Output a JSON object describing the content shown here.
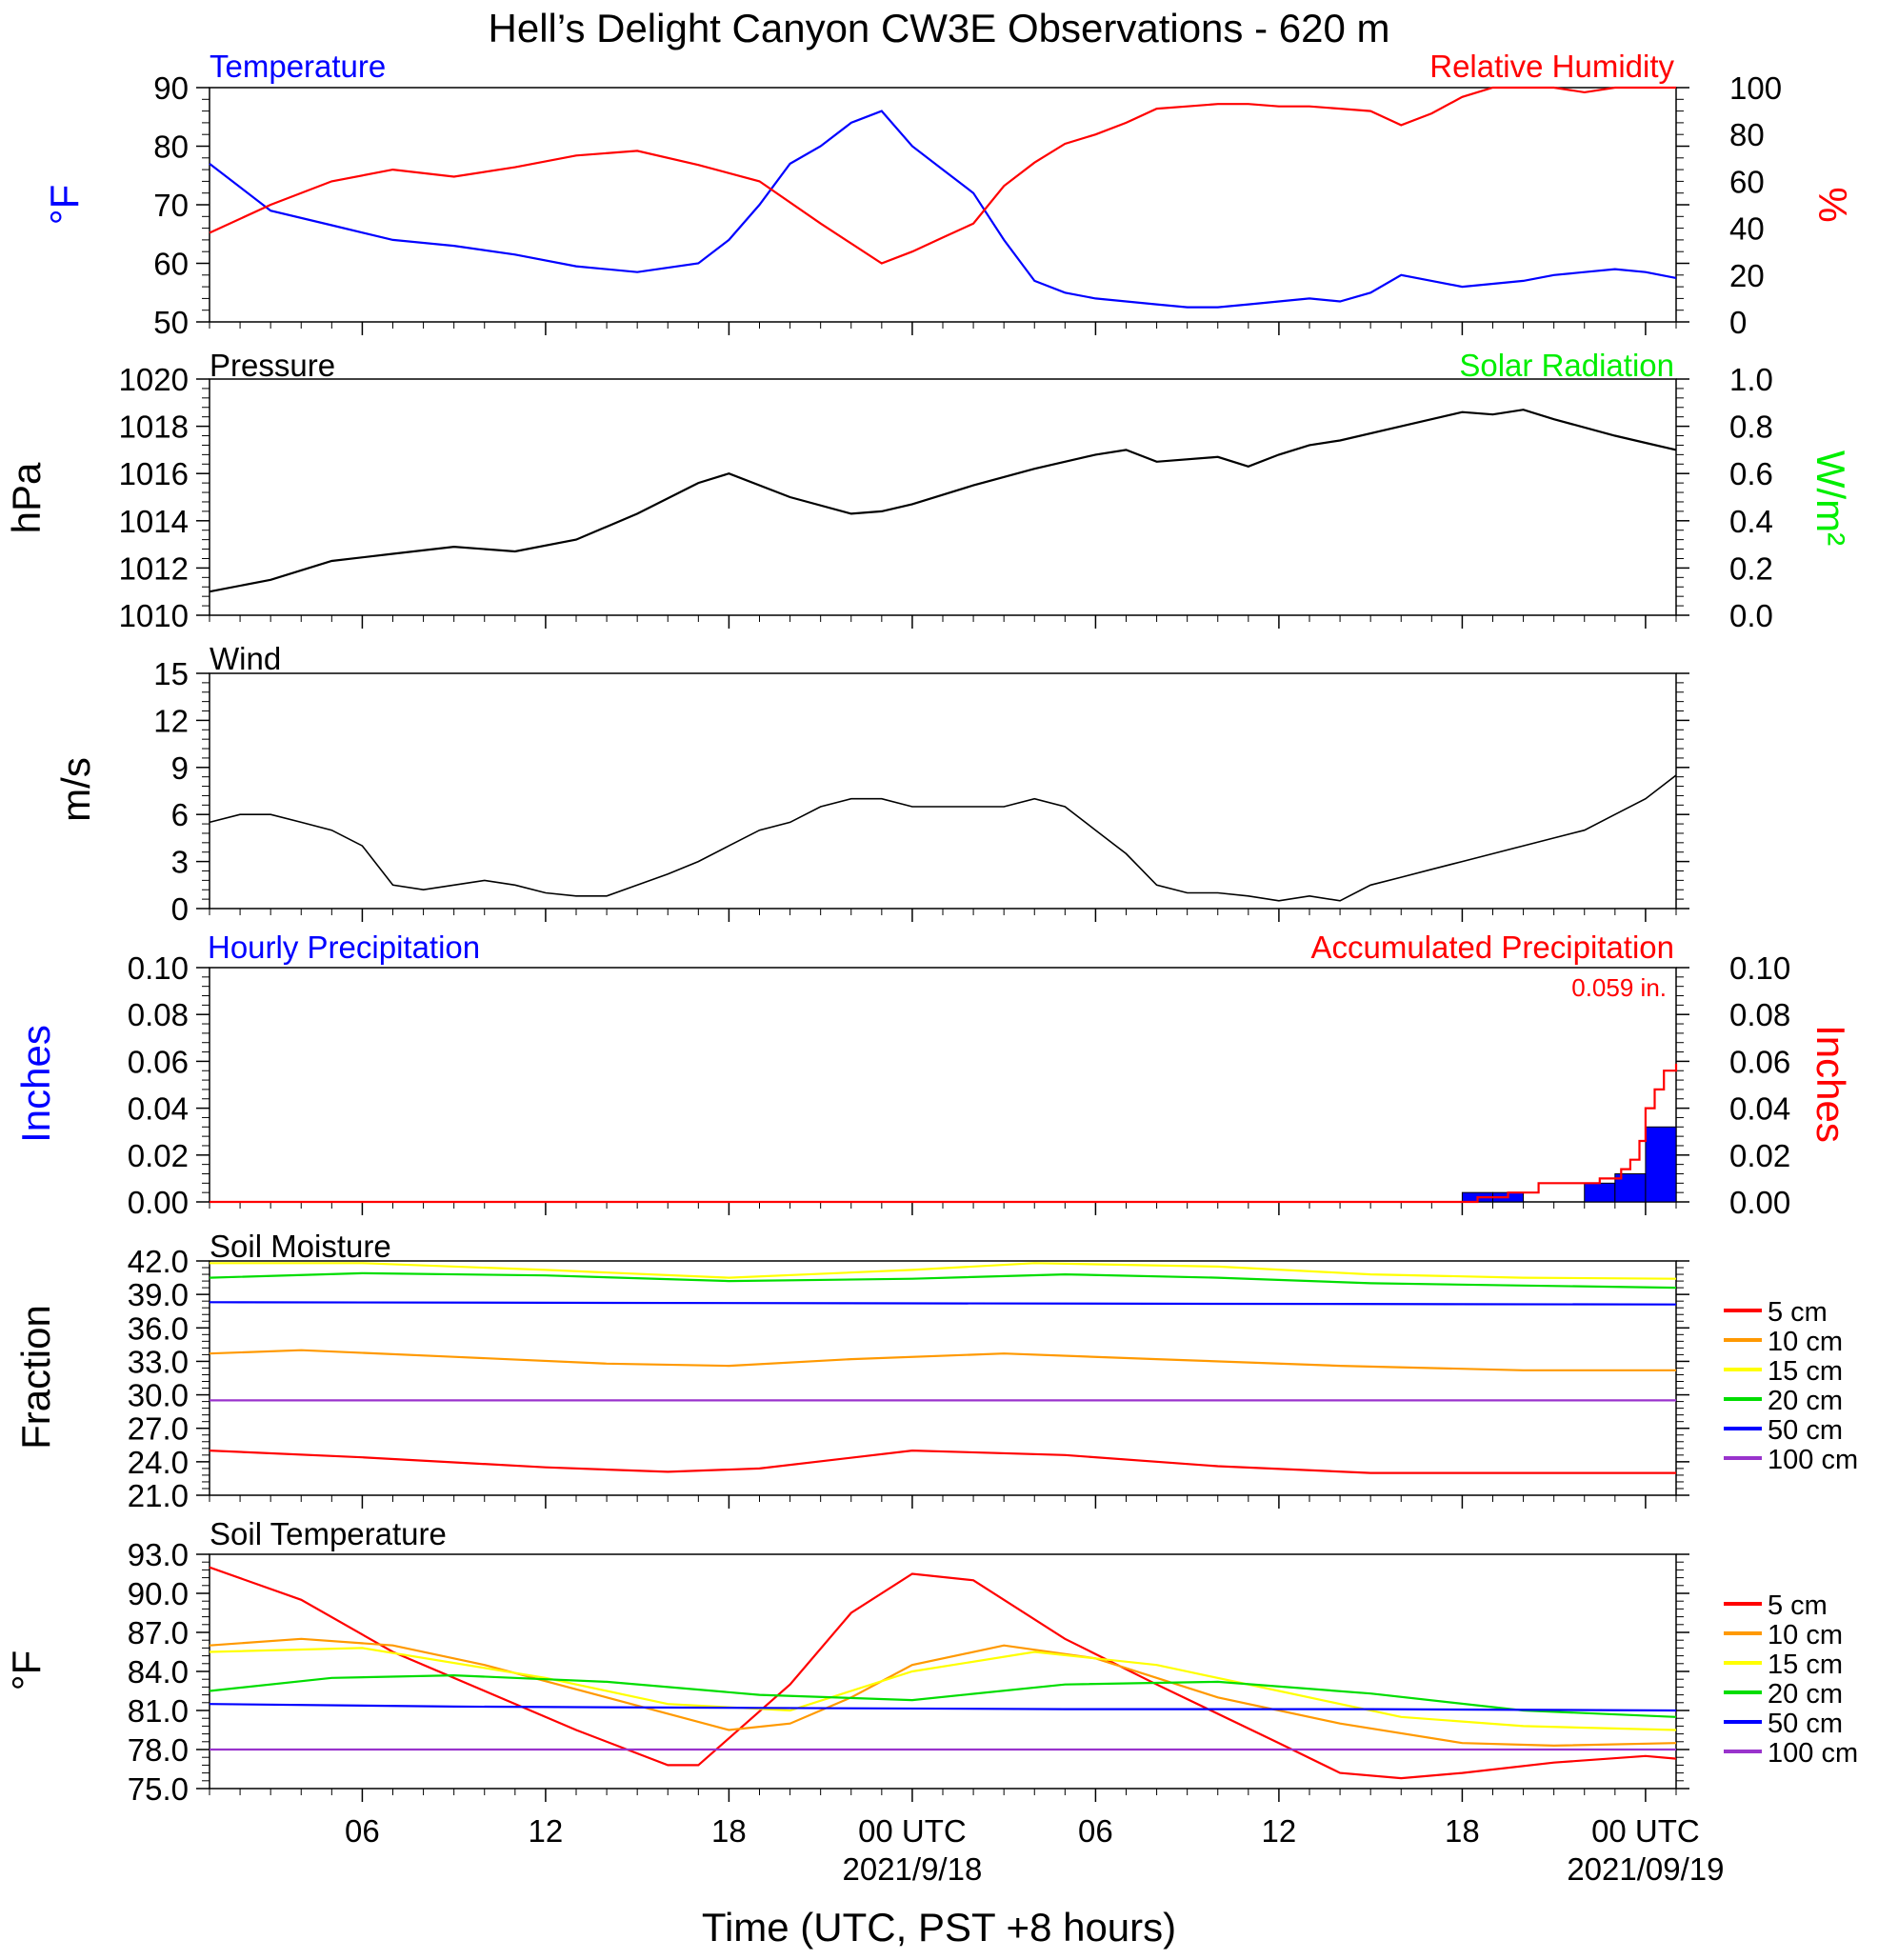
{
  "title": "Hell’s Delight Canyon CW3E Observations - 620 m",
  "x_axis": {
    "label": "Time (UTC, PST +8 hours)",
    "range_hours": [
      -23,
      25
    ],
    "ticks": [
      {
        "h": -18,
        "label": "06",
        "sub": ""
      },
      {
        "h": -12,
        "label": "12",
        "sub": ""
      },
      {
        "h": -6,
        "label": "18",
        "sub": ""
      },
      {
        "h": 0,
        "label": "00 UTC",
        "sub": "2021/9/18"
      },
      {
        "h": 6,
        "label": "06",
        "sub": ""
      },
      {
        "h": 12,
        "label": "12",
        "sub": ""
      },
      {
        "h": 18,
        "label": "18",
        "sub": ""
      },
      {
        "h": 24,
        "label": "00 UTC",
        "sub": "2021/09/19"
      }
    ]
  },
  "colors": {
    "blue": "#0000ff",
    "red": "#ff0000",
    "green": "#00ee00",
    "black": "#000000",
    "orange": "#ff9900",
    "yellow": "#ffff00",
    "soil_green": "#00dd00",
    "purple": "#9933cc"
  },
  "panels": {
    "temp_rh": {
      "left_title": "Temperature",
      "right_title": "Relative Humidity",
      "left_unit": "°F",
      "right_unit": "%",
      "left_ticks": [
        "90",
        "80",
        "70",
        "60",
        "50"
      ],
      "right_ticks": [
        "100",
        "80",
        "60",
        "40",
        "20",
        "0"
      ]
    },
    "pressure": {
      "left_title": "Pressure",
      "right_title": "Solar Radiation",
      "left_unit": "hPa",
      "right_unit": "W/m²",
      "left_ticks": [
        "1020",
        "1018",
        "1016",
        "1014",
        "1012",
        "1010"
      ],
      "right_ticks": [
        "1.0",
        "0.8",
        "0.6",
        "0.4",
        "0.2",
        "0.0"
      ]
    },
    "wind": {
      "left_title": "Wind",
      "left_unit": "m/s",
      "left_ticks": [
        "15",
        "12",
        "9",
        "6",
        "3",
        "0"
      ]
    },
    "precip": {
      "left_title": "Hourly Precipitation",
      "right_title": "Accumulated Precipitation",
      "total": "0.059 in.",
      "left_unit": "Inches",
      "right_unit": "Inches",
      "left_ticks": [
        "0.10",
        "0.08",
        "0.06",
        "0.04",
        "0.02",
        "0.00"
      ],
      "right_ticks": [
        "0.10",
        "0.08",
        "0.06",
        "0.04",
        "0.02",
        "0.00"
      ]
    },
    "soil_moisture": {
      "left_title": "Soil Moisture",
      "left_unit": "Fraction",
      "left_ticks": [
        "42.0",
        "39.0",
        "36.0",
        "33.0",
        "30.0",
        "27.0",
        "24.0",
        "21.0"
      ],
      "legend": [
        "5 cm",
        "10 cm",
        "15 cm",
        "20 cm",
        "50 cm",
        "100 cm"
      ]
    },
    "soil_temp": {
      "left_title": "Soil Temperature",
      "left_unit": "°F",
      "left_ticks": [
        "93.0",
        "90.0",
        "87.0",
        "84.0",
        "81.0",
        "78.0",
        "75.0"
      ],
      "legend": [
        "5 cm",
        "10 cm",
        "15 cm",
        "20 cm",
        "50 cm",
        "100 cm"
      ]
    }
  },
  "chart_data": [
    {
      "type": "line",
      "title": "Temperature / Relative Humidity",
      "ylabel": "°F",
      "y2label": "%",
      "ylim": [
        50,
        90
      ],
      "y2lim": [
        0,
        100
      ],
      "x_unit": "hours from 2021/9/18 00 UTC",
      "series": [
        {
          "name": "Temperature",
          "axis": "left",
          "color": "#0000ff",
          "x": [
            -23,
            -21,
            -19,
            -17,
            -15,
            -13,
            -11,
            -9,
            -7,
            -6,
            -5,
            -4,
            -3,
            -2,
            -1,
            0,
            1,
            2,
            3,
            4,
            5,
            6,
            7,
            8,
            9,
            10,
            11,
            12,
            13,
            14,
            15,
            16,
            17,
            18,
            19,
            20,
            21,
            22,
            23,
            24,
            25
          ],
          "y": [
            77,
            69,
            66.5,
            64,
            63,
            61.5,
            59.5,
            58.5,
            60,
            64,
            70,
            77,
            80,
            84,
            86,
            80,
            76,
            72,
            64,
            57,
            55,
            54,
            53.5,
            53,
            52.5,
            52.5,
            53,
            53.5,
            54,
            53.5,
            55,
            58,
            57,
            56,
            56.5,
            57,
            58,
            58.5,
            59,
            58.5,
            57.5
          ]
        },
        {
          "name": "Relative Humidity",
          "axis": "right",
          "color": "#ff0000",
          "x": [
            -23,
            -21,
            -19,
            -17,
            -15,
            -13,
            -11,
            -9,
            -7,
            -5,
            -3,
            -1,
            0,
            1,
            2,
            3,
            4,
            5,
            6,
            7,
            8,
            9,
            10,
            11,
            12,
            13,
            14,
            15,
            16,
            17,
            18,
            19,
            20,
            21,
            22,
            23,
            24,
            25
          ],
          "y": [
            38,
            50,
            60,
            65,
            62,
            66,
            71,
            73,
            67,
            60,
            42,
            25,
            30,
            36,
            42,
            58,
            68,
            76,
            80,
            85,
            91,
            92,
            93,
            93,
            92,
            92,
            91,
            90,
            84,
            89,
            96,
            100,
            100,
            100,
            98,
            100,
            100,
            100
          ]
        }
      ]
    },
    {
      "type": "line",
      "title": "Pressure / Solar Radiation",
      "ylabel": "hPa",
      "y2label": "W/m²",
      "ylim": [
        1010,
        1020
      ],
      "y2lim": [
        0,
        1
      ],
      "series": [
        {
          "name": "Pressure",
          "axis": "left",
          "color": "#000000",
          "x": [
            -23,
            -21,
            -19,
            -17,
            -15,
            -13,
            -11,
            -9,
            -7,
            -6,
            -4,
            -2,
            -1,
            0,
            2,
            4,
            6,
            7,
            8,
            10,
            11,
            12,
            13,
            14,
            16,
            18,
            19,
            20,
            21,
            23,
            24,
            25
          ],
          "y": [
            1011,
            1011.5,
            1012.3,
            1012.6,
            1012.9,
            1012.7,
            1013.2,
            1014.3,
            1015.6,
            1016,
            1015,
            1014.3,
            1014.4,
            1014.7,
            1015.5,
            1016.2,
            1016.8,
            1017,
            1016.5,
            1016.7,
            1016.3,
            1016.8,
            1017.2,
            1017.4,
            1018,
            1018.6,
            1018.5,
            1018.7,
            1018.3,
            1017.6,
            1017.3,
            1017
          ]
        }
      ]
    },
    {
      "type": "line",
      "title": "Wind",
      "ylabel": "m/s",
      "ylim": [
        0,
        15
      ],
      "series": [
        {
          "name": "Wind",
          "axis": "left",
          "color": "#000000",
          "x": [
            -23,
            -22,
            -21,
            -20,
            -19,
            -18,
            -17,
            -16,
            -15,
            -14,
            -13,
            -12,
            -11,
            -10,
            -9,
            -8,
            -7,
            -6,
            -5,
            -4,
            -3,
            -2,
            -1,
            0,
            1,
            2,
            3,
            4,
            5,
            6,
            7,
            8,
            9,
            10,
            11,
            12,
            13,
            14,
            15,
            16,
            17,
            18,
            19,
            20,
            21,
            22,
            23,
            24,
            25
          ],
          "y": [
            5.5,
            6,
            6,
            5.5,
            5,
            4,
            1.5,
            1.2,
            1.5,
            1.8,
            1.5,
            1,
            0.8,
            0.8,
            1.5,
            2.2,
            3,
            4,
            5,
            5.5,
            6.5,
            7,
            7,
            6.5,
            6.5,
            6.5,
            6.5,
            7,
            6.5,
            5,
            3.5,
            1.5,
            1,
            1,
            0.8,
            0.5,
            0.8,
            0.5,
            1.5,
            2,
            2.5,
            3,
            3.5,
            4,
            4.5,
            5,
            6,
            7,
            8.5
          ]
        }
      ]
    },
    {
      "type": "bar",
      "title": "Hourly Precipitation / Accumulated Precipitation",
      "ylabel": "Inches",
      "y2label": "Inches",
      "ylim": [
        0,
        0.1
      ],
      "y2lim": [
        0,
        0.1
      ],
      "series": [
        {
          "name": "Hourly Precipitation",
          "axis": "left",
          "color": "#0000ff",
          "x": [
            18,
            19,
            22,
            23,
            24
          ],
          "y": [
            0.004,
            0.004,
            0.008,
            0.012,
            0.032
          ]
        },
        {
          "name": "Accumulated Precipitation",
          "axis": "right",
          "color": "#ff0000",
          "x": [
            -23,
            18,
            18.5,
            19.5,
            20.5,
            21.5,
            22.5,
            23.2,
            23.5,
            23.8,
            24,
            24.3,
            24.6,
            25
          ],
          "y": [
            0,
            0,
            0.002,
            0.004,
            0.008,
            0.008,
            0.01,
            0.014,
            0.018,
            0.026,
            0.04,
            0.048,
            0.056,
            0.059
          ]
        }
      ]
    },
    {
      "type": "line",
      "title": "Soil Moisture",
      "ylabel": "Fraction",
      "ylim": [
        21,
        42
      ],
      "series": [
        {
          "name": "5 cm",
          "color": "#ff0000",
          "x": [
            -23,
            -18,
            -12,
            -8,
            -5,
            0,
            5,
            10,
            15,
            20,
            25
          ],
          "y": [
            25,
            24.4,
            23.5,
            23.1,
            23.4,
            25,
            24.6,
            23.6,
            23,
            23,
            23
          ]
        },
        {
          "name": "10 cm",
          "color": "#ff9900",
          "x": [
            -23,
            -20,
            -15,
            -10,
            -6,
            -2,
            3,
            8,
            14,
            20,
            25
          ],
          "y": [
            33.7,
            34,
            33.4,
            32.8,
            32.6,
            33.2,
            33.7,
            33.2,
            32.6,
            32.2,
            32.2
          ]
        },
        {
          "name": "15 cm",
          "color": "#ffff00",
          "x": [
            -23,
            -18,
            -12,
            -6,
            0,
            4,
            10,
            15,
            20,
            25
          ],
          "y": [
            41.8,
            41.8,
            41.2,
            40.5,
            41.2,
            41.8,
            41.5,
            40.8,
            40.5,
            40.4
          ]
        },
        {
          "name": "20 cm",
          "color": "#00dd00",
          "x": [
            -23,
            -18,
            -12,
            -6,
            0,
            5,
            10,
            15,
            20,
            25
          ],
          "y": [
            40.5,
            40.9,
            40.7,
            40.2,
            40.4,
            40.8,
            40.5,
            40,
            39.8,
            39.6
          ]
        },
        {
          "name": "50 cm",
          "color": "#0000ff",
          "x": [
            -23,
            0,
            25
          ],
          "y": [
            38.3,
            38.2,
            38.1
          ]
        },
        {
          "name": "100 cm",
          "color": "#9933cc",
          "x": [
            -23,
            0,
            25
          ],
          "y": [
            29.5,
            29.5,
            29.5
          ]
        }
      ]
    },
    {
      "type": "line",
      "title": "Soil Temperature",
      "ylabel": "°F",
      "ylim": [
        75,
        93
      ],
      "series": [
        {
          "name": "5 cm",
          "color": "#ff0000",
          "x": [
            -23,
            -20,
            -17,
            -14,
            -11,
            -8,
            -7,
            -4,
            -2,
            0,
            2,
            5,
            8,
            12,
            14,
            16,
            18,
            21,
            24,
            25
          ],
          "y": [
            92,
            89.5,
            85.5,
            82.5,
            79.5,
            76.8,
            76.8,
            83,
            88.5,
            91.5,
            91,
            86.5,
            83,
            78.5,
            76.2,
            75.8,
            76.2,
            77,
            77.5,
            77.3
          ]
        },
        {
          "name": "10 cm",
          "color": "#ff9900",
          "x": [
            -23,
            -20,
            -17,
            -14,
            -10,
            -6,
            -4,
            -2,
            0,
            3,
            6,
            10,
            14,
            18,
            21,
            25
          ],
          "y": [
            86,
            86.5,
            86,
            84.5,
            82,
            79.5,
            80,
            82,
            84.5,
            86,
            85,
            82,
            80,
            78.5,
            78.3,
            78.5
          ]
        },
        {
          "name": "15 cm",
          "color": "#ffff00",
          "x": [
            -23,
            -18,
            -12,
            -8,
            -4,
            0,
            4,
            8,
            12,
            16,
            20,
            25
          ],
          "y": [
            85.5,
            85.8,
            83.5,
            81.5,
            81,
            84,
            85.5,
            84.5,
            82.5,
            80.5,
            79.8,
            79.5
          ]
        },
        {
          "name": "20 cm",
          "color": "#00dd00",
          "x": [
            -23,
            -19,
            -15,
            -10,
            -5,
            0,
            5,
            10,
            15,
            20,
            25
          ],
          "y": [
            82.5,
            83.5,
            83.7,
            83.2,
            82.2,
            81.8,
            83,
            83.2,
            82.3,
            81,
            80.5
          ]
        },
        {
          "name": "50 cm",
          "color": "#0000ff",
          "x": [
            -23,
            -15,
            -5,
            5,
            15,
            25
          ],
          "y": [
            81.5,
            81.3,
            81.2,
            81.1,
            81.1,
            81
          ]
        },
        {
          "name": "100 cm",
          "color": "#9933cc",
          "x": [
            -23,
            0,
            25
          ],
          "y": [
            78,
            78,
            78
          ]
        }
      ]
    }
  ]
}
